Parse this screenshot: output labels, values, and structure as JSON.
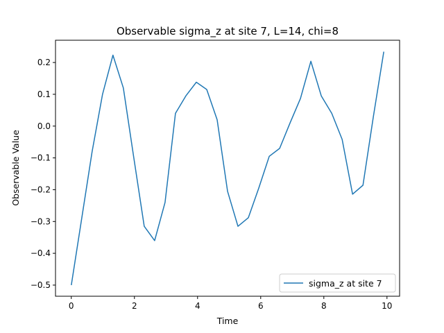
{
  "chart_data": {
    "type": "line",
    "title": "Observable sigma_z at site 7, L=14, chi=8",
    "xlabel": "Time",
    "ylabel": "Observable Value",
    "xlim": [
      -0.5,
      10.4
    ],
    "ylim": [
      -0.535,
      0.27
    ],
    "xticks": [
      0,
      2,
      4,
      6,
      8,
      10
    ],
    "xtick_labels": [
      "0",
      "2",
      "4",
      "6",
      "8",
      "10"
    ],
    "yticks": [
      -0.5,
      -0.4,
      -0.3,
      -0.2,
      -0.1,
      0.0,
      0.1,
      0.2
    ],
    "ytick_labels": [
      "−0.5",
      "−0.4",
      "−0.3",
      "−0.2",
      "−0.1",
      "0.0",
      "0.1",
      "0.2"
    ],
    "grid": false,
    "legend_position": "lower-right",
    "series": [
      {
        "name": "sigma_z at site 7",
        "color": "#1f77b4",
        "x": [
          0.0,
          0.33,
          0.66,
          0.99,
          1.32,
          1.65,
          1.98,
          2.31,
          2.64,
          2.97,
          3.3,
          3.63,
          3.96,
          4.29,
          4.62,
          4.95,
          5.28,
          5.61,
          5.94,
          6.27,
          6.6,
          6.93,
          7.26,
          7.59,
          7.92,
          8.25,
          8.58,
          8.91,
          9.24,
          9.57,
          9.9
        ],
        "y": [
          -0.5,
          -0.29,
          -0.08,
          0.1,
          0.223,
          0.12,
          -0.1,
          -0.315,
          -0.36,
          -0.24,
          0.04,
          0.095,
          0.138,
          0.115,
          0.02,
          -0.205,
          -0.315,
          -0.288,
          -0.195,
          -0.095,
          -0.07,
          0.01,
          0.087,
          0.204,
          0.095,
          0.04,
          -0.042,
          -0.214,
          -0.186,
          0.03,
          0.234
        ]
      }
    ]
  }
}
